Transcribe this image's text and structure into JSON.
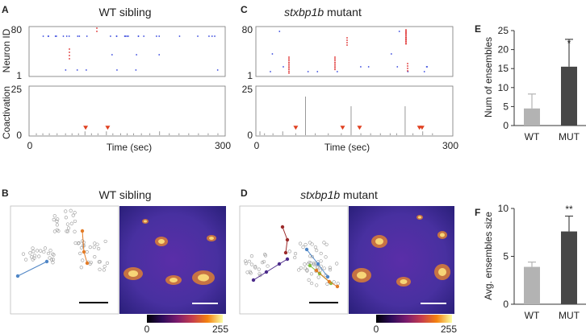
{
  "panels": {
    "A": {
      "letter": "A",
      "title": "WT sibling",
      "raster_ylabel": "Neuron ID",
      "raster_yticks": [
        "80",
        "1"
      ],
      "coact_ylabel": "Coactivation",
      "coact_yticks": [
        "25",
        "0"
      ],
      "xticks": [
        "0",
        "300"
      ],
      "xlabel": "Time (sec)"
    },
    "C": {
      "letter": "C",
      "title_italic": "stxbp1b",
      "title_rest": " mutant",
      "raster_yticks": [
        "80",
        "1"
      ],
      "coact_yticks": [
        "25",
        "0"
      ],
      "xticks": [
        "0",
        "300"
      ],
      "xlabel": "Time (sec)"
    },
    "B": {
      "letter": "B",
      "title": "WT sibling",
      "colorbar_min": "0",
      "colorbar_max": "255"
    },
    "D": {
      "letter": "D",
      "title_italic": "stxbp1b",
      "title_rest": " mutant",
      "colorbar_min": "0",
      "colorbar_max": "255"
    },
    "E": {
      "letter": "E",
      "significance": "*"
    },
    "F": {
      "letter": "F",
      "significance": "**"
    }
  },
  "colors": {
    "wt_bar": "#b3b3b3",
    "mut_bar": "#474747",
    "raster_blue": "#3344dd",
    "raster_red": "#dd2222",
    "event_marker": "#e04020"
  },
  "chart_data": [
    {
      "id": "E",
      "type": "bar",
      "ylabel": "Num of ensembles",
      "categories": [
        "WT",
        "MUT"
      ],
      "values": [
        4.5,
        15.5
      ],
      "errors": [
        3.8,
        7.2
      ],
      "ylim": [
        0,
        25
      ],
      "yticks": [
        0,
        5,
        10,
        15,
        20,
        25
      ],
      "colors": [
        "#b3b3b3",
        "#474747"
      ]
    },
    {
      "id": "F",
      "type": "bar",
      "ylabel": "Avg. ensembles size",
      "categories": [
        "WT",
        "MUT"
      ],
      "values": [
        3.9,
        7.6
      ],
      "errors": [
        0.5,
        1.6
      ],
      "ylim": [
        0,
        10
      ],
      "yticks": [
        0,
        5,
        10
      ],
      "colors": [
        "#b3b3b3",
        "#474747"
      ]
    },
    {
      "id": "A-coactivation",
      "type": "bar",
      "xlim": [
        0,
        300
      ],
      "ylim": [
        0,
        25
      ],
      "x": [
        10,
        20,
        30,
        42,
        55,
        65,
        75,
        85,
        95,
        105,
        118,
        128,
        140,
        150,
        160,
        172,
        185,
        200,
        215,
        230,
        245,
        260,
        275,
        290
      ],
      "values": [
        1,
        1,
        1,
        1,
        1,
        1,
        1,
        2,
        1,
        1,
        2,
        1,
        1,
        1,
        1,
        1,
        1,
        2,
        1,
        1,
        1,
        1,
        1,
        1
      ],
      "events_x": [
        86,
        120
      ]
    },
    {
      "id": "C-coactivation",
      "type": "bar",
      "xlim": [
        0,
        300
      ],
      "ylim": [
        0,
        25
      ],
      "x": [
        5,
        12,
        25,
        40,
        60,
        75,
        90,
        110,
        130,
        145,
        160,
        175,
        190,
        205,
        215,
        228,
        240,
        255,
        270
      ],
      "values": [
        2,
        1,
        1,
        2,
        1,
        20,
        1,
        1,
        1,
        15,
        1,
        1,
        1,
        1,
        1,
        15,
        1,
        2,
        1
      ],
      "events_x": [
        60,
        132,
        158,
        250,
        254
      ]
    }
  ]
}
